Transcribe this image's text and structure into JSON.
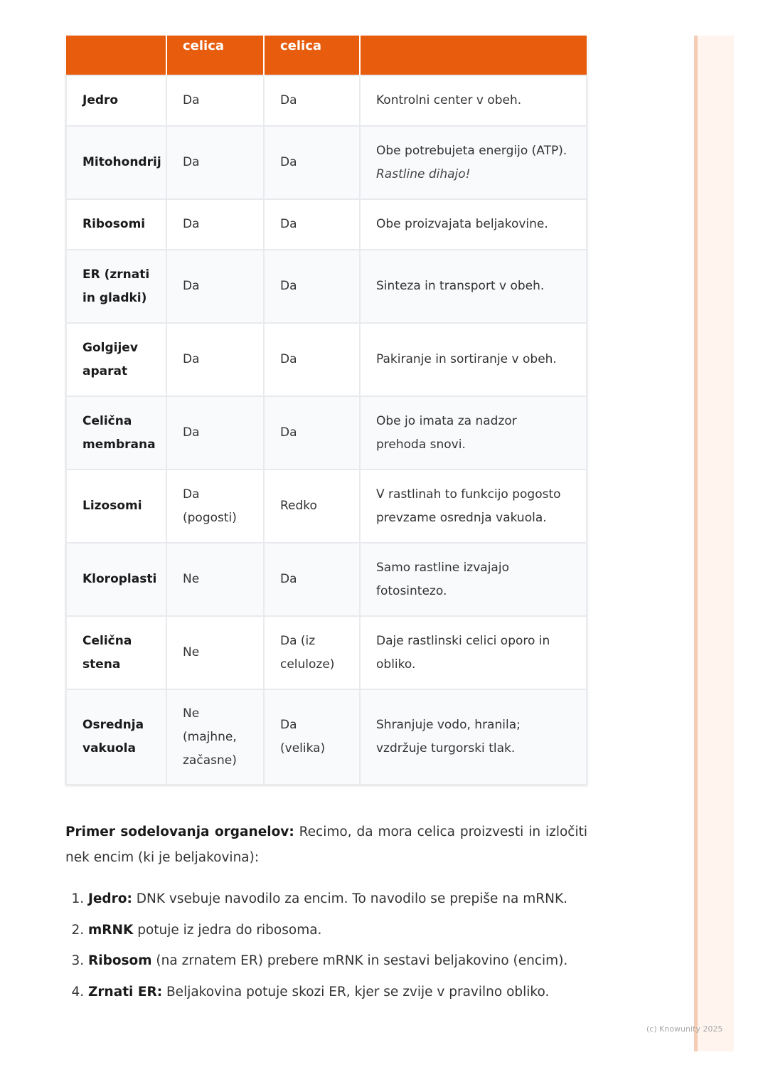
{
  "table": {
    "headers": [
      "",
      "celica",
      "celica",
      ""
    ],
    "rows": [
      {
        "organelle": "Jedro",
        "animal": "Da",
        "plant": "Da",
        "note": "Kontrolni center v obeh.",
        "note_italic": ""
      },
      {
        "organelle": "Mitohondrij",
        "animal": "Da",
        "plant": "Da",
        "note": "Obe potrebujeta energijo (ATP).",
        "note_italic": "Rastline dihajo!"
      },
      {
        "organelle": "Ribosomi",
        "animal": "Da",
        "plant": "Da",
        "note": "Obe proizvajata beljakovine.",
        "note_italic": ""
      },
      {
        "organelle": "ER (zrnati in gladki)",
        "animal": "Da",
        "plant": "Da",
        "note": "Sinteza in transport v obeh.",
        "note_italic": ""
      },
      {
        "organelle": "Golgijev aparat",
        "animal": "Da",
        "plant": "Da",
        "note": "Pakiranje in sortiranje v obeh.",
        "note_italic": ""
      },
      {
        "organelle": "Celična membrana",
        "animal": "Da",
        "plant": "Da",
        "note": "Obe jo imata za nadzor prehoda snovi.",
        "note_italic": ""
      },
      {
        "organelle": "Lizosomi",
        "animal": "Da (pogosti)",
        "plant": "Redko",
        "note": "V rastlinah to funkcijo pogosto prevzame osrednja vakuola.",
        "note_italic": ""
      },
      {
        "organelle": "Kloroplasti",
        "animal": "Ne",
        "plant": "Da",
        "note": "Samo rastline izvajajo fotosintezo.",
        "note_italic": ""
      },
      {
        "organelle": "Celična stena",
        "animal": "Ne",
        "plant": "Da (iz celuloze)",
        "note": "Daje rastlinski celici oporo in obliko.",
        "note_italic": ""
      },
      {
        "organelle": "Osrednja vakuola",
        "animal": "Ne (majhne, začasne)",
        "plant": "Da (velika)",
        "note": "Shranjuje vodo, hranila; vzdržuje turgorski tlak.",
        "note_italic": ""
      }
    ]
  },
  "paragraph": {
    "bold": "Primer sodelovanja organelov:",
    "text": " Recimo, da mora celica proizvesti in izločiti nek encim (ki je beljakovina):"
  },
  "steps": [
    {
      "bold": "Jedro:",
      "text": " DNK vsebuje navodilo za encim. To navodilo se prepiše na mRNK."
    },
    {
      "bold": "mRNK",
      "text": " potuje iz jedra do ribosoma."
    },
    {
      "bold": "Ribosom",
      "text": " (na zrnatem ER) prebere mRNK in sestavi beljakovino (encim)."
    },
    {
      "bold": "Zrnati ER:",
      "text": " Beljakovina potuje skozi ER, kjer se zvije v pravilno obliko."
    }
  ],
  "footer": {
    "copyright": "(c) Knowunity 2025"
  },
  "colors": {
    "header": "#e85c0d",
    "stripe": "#fff4ee"
  }
}
